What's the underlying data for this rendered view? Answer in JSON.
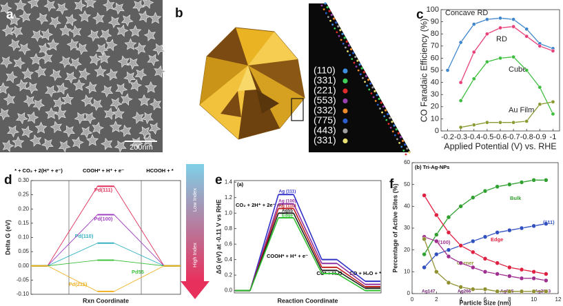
{
  "panels": {
    "a": {
      "label": "a",
      "scale_bar": "200nm"
    },
    "b": {
      "label": "b",
      "facets": [
        {
          "label": "(110)",
          "color": "#3f8fe0"
        },
        {
          "label": "(331)",
          "color": "#3fd05a"
        },
        {
          "label": "(221)",
          "color": "#e02b2b"
        },
        {
          "label": "(553)",
          "color": "#9a3fb0"
        },
        {
          "label": "(332)",
          "color": "#f08a2a"
        },
        {
          "label": "(775)",
          "color": "#2b5fd0"
        },
        {
          "label": "(443)",
          "color": "#a0a0a0"
        },
        {
          "label": "(331)",
          "color": "#e8e070"
        }
      ]
    }
  },
  "chart_data": [
    {
      "type": "line",
      "panel": "c",
      "ylabel": "CO Faradaic Efficiency (%)",
      "xlabel": "Applied Potential (V) vs. RHE",
      "x": [
        -0.2,
        -0.3,
        -0.4,
        -0.5,
        -0.6,
        -0.7,
        -0.8,
        -0.9,
        -1.0
      ],
      "series": [
        {
          "name": "Concave RD",
          "color": "#3f86cc",
          "values": [
            50,
            73,
            88,
            92,
            93,
            92,
            84,
            72,
            68
          ]
        },
        {
          "name": "RD",
          "color": "#e8407a",
          "values": [
            null,
            40,
            65,
            80,
            85,
            86,
            78,
            70,
            66
          ]
        },
        {
          "name": "Cube",
          "color": "#3fbf3f",
          "values": [
            null,
            25,
            43,
            57,
            60,
            61,
            50,
            36,
            14
          ]
        },
        {
          "name": "Au Film",
          "color": "#8a9a30",
          "values": [
            null,
            3,
            5,
            7,
            7,
            7,
            8,
            22,
            24
          ]
        }
      ],
      "xlim": [
        -0.15,
        -1.05
      ],
      "xticks": [
        -0.2,
        -0.3,
        -0.4,
        -0.5,
        -0.6,
        -0.7,
        -0.8,
        -0.9,
        -1.0
      ],
      "ylim": [
        0,
        100
      ],
      "yticks": [
        0,
        10,
        20,
        30,
        40,
        50,
        60,
        70,
        80,
        90,
        100
      ]
    },
    {
      "type": "energy",
      "panel": "d",
      "ylabel": "Delta G (eV)",
      "xlabel": "Rxn Coordinate",
      "categories": [
        "* + CO₂ + 2(H⁺ + e⁻)",
        "COOH* + H⁺ + e⁻",
        "HCOOH + *"
      ],
      "series": [
        {
          "name": "Pd(111)",
          "color": "#e0305a",
          "values": [
            0,
            0.28,
            0
          ]
        },
        {
          "name": "Pd(100)",
          "color": "#a040c0",
          "values": [
            0,
            0.18,
            0
          ]
        },
        {
          "name": "Pd(110)",
          "color": "#30b0c0",
          "values": [
            0,
            0.08,
            0
          ]
        },
        {
          "name": "Pd55",
          "color": "#40c040",
          "values": [
            0,
            0.02,
            0
          ]
        },
        {
          "name": "Pd(211)",
          "color": "#f0b020",
          "values": [
            0,
            -0.09,
            0
          ]
        }
      ],
      "ylim": [
        -0.1,
        0.3
      ],
      "yticks": [
        {
          "value": 0.3,
          "label": "0.30"
        },
        0.25,
        {
          "value": 0.2,
          "label": "0.20"
        },
        0.15,
        {
          "value": 0.1,
          "label": "0.10"
        },
        0.05,
        {
          "value": 0,
          "label": "0.00"
        },
        -0.05,
        {
          "value": -0.1,
          "label": "-0.10"
        }
      ],
      "annotations": [
        "Low Index",
        "High Index"
      ]
    },
    {
      "type": "energy",
      "panel": "e",
      "title": "(a)",
      "ylabel": "ΔG (eV) at -0.11 V vs RHE",
      "xlabel": "Reaction Coordinate",
      "categories": [
        "CO₂ + 2H⁺ + 2e⁻ + *",
        "COOH* + H⁺ + e⁻",
        "CO* + H₂O",
        "CO + H₂O + *"
      ],
      "series": [
        {
          "name": "Ag (111)",
          "color": "#3030c8",
          "values": [
            0,
            1.24,
            0.4,
            0.12
          ]
        },
        {
          "name": "Ag (100)",
          "color": "#9030a0",
          "values": [
            0,
            1.12,
            0.35,
            0.08
          ]
        },
        {
          "name": "Ag (110)",
          "color": "#c02020",
          "values": [
            0,
            1.06,
            0.3,
            0.05
          ]
        },
        {
          "name": "Ag55",
          "color": "#202020",
          "values": [
            0,
            1.0,
            0.26,
            0.03
          ]
        },
        {
          "name": "Edge",
          "color": "#30c030",
          "values": [
            0,
            0.94,
            0.22,
            0.0
          ]
        }
      ],
      "ylim": [
        -0.03,
        1.42
      ],
      "yticks": [
        {
          "value": 0,
          "label": "0.0"
        },
        0.2,
        0.4,
        0.6,
        0.8,
        {
          "value": 1,
          "label": "1.0"
        },
        1.2,
        1.4
      ]
    },
    {
      "type": "line",
      "panel": "f",
      "title": "(b) Tri-Ag-NPs",
      "ylabel": "Percentage of Active Sites (%)",
      "xlabel": "Particle Size (nm)",
      "x": [
        1,
        2,
        3,
        4,
        5,
        6,
        7,
        8,
        9,
        10,
        11
      ],
      "series": [
        {
          "name": "Bulk",
          "color": "#30a030",
          "values": [
            18,
            27,
            35,
            40,
            44,
            47,
            49,
            50,
            51,
            52,
            52
          ]
        },
        {
          "name": "(111)",
          "color": "#3050c0",
          "values": [
            12,
            18,
            20,
            22,
            24,
            26,
            28,
            29,
            30,
            31,
            32
          ]
        },
        {
          "name": "Edge",
          "color": "#e02040",
          "values": [
            45,
            36,
            28,
            22,
            19,
            16,
            14,
            12,
            11,
            10,
            9
          ]
        },
        {
          "name": "(100)",
          "color": "#a03090",
          "values": [
            26,
            24,
            17,
            14,
            12,
            10,
            9,
            8,
            7,
            7,
            6
          ]
        },
        {
          "name": "Corner",
          "color": "#909030",
          "values": [
            25,
            10,
            5,
            3,
            2,
            2,
            1,
            1,
            1,
            1,
            1
          ]
        }
      ],
      "xlim": [
        0,
        12
      ],
      "xticks": [
        0,
        2,
        4,
        6,
        8,
        10,
        12
      ],
      "ylim": [
        0,
        60
      ],
      "yticks": [
        0,
        10,
        20,
        30,
        40,
        50,
        60
      ],
      "annotations": [
        "Ag147",
        "Ag266",
        "Ag665",
        "Ag2003"
      ]
    }
  ]
}
